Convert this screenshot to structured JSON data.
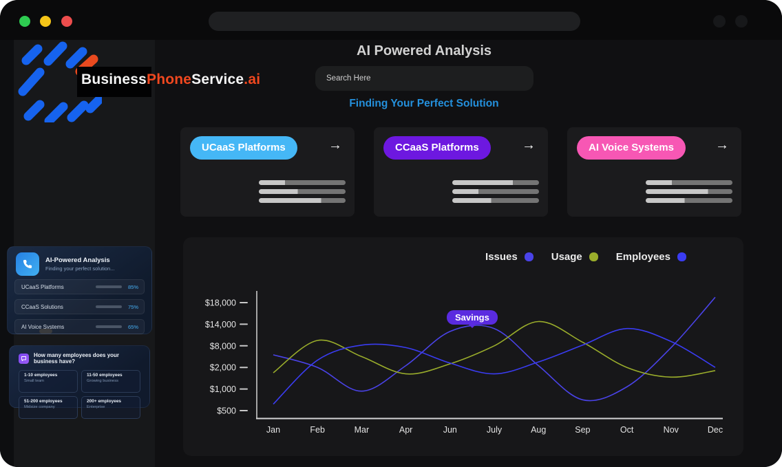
{
  "window": {
    "traffic_lights": [
      "#2ecc51",
      "#f5c518",
      "#ed4d4d"
    ],
    "url_bar_text": ""
  },
  "brand": {
    "logo_part1": "Business",
    "logo_part2": "Phone",
    "logo_part3": "Service",
    "logo_part4": ".ai",
    "colors": {
      "blue": "#1663ee",
      "orange": "#ea4a1f"
    }
  },
  "header": {
    "title": "AI Powered Analysis",
    "search_placeholder": "Search Here",
    "subtitle": "Finding Your Perfect Solution",
    "subtitle_color": "#2490dc"
  },
  "solutions": {
    "cards": [
      {
        "label": "UCaaS Platforms",
        "pill_color": "#45b7f6",
        "arrow": "→",
        "skeleton_splits": [
          30,
          45,
          72
        ]
      },
      {
        "label": "CCaaS Platforms",
        "pill_color": "#6d18e0",
        "arrow": "→",
        "skeleton_splits": [
          70,
          30,
          45
        ]
      },
      {
        "label": "AI Voice Systems",
        "pill_color": "#f757b4",
        "arrow": "→",
        "skeleton_splits": [
          30,
          72,
          45
        ]
      }
    ],
    "skeleton_colors": {
      "light": "#c7c7c7",
      "dark": "#747474"
    }
  },
  "sidebar": {
    "analysis_widget": {
      "icon": "phone-icon",
      "title": "AI-Powered Analysis",
      "subtitle": "Finding your perfect solution...",
      "accent": "#46aef2",
      "items": [
        {
          "label": "UCaaS Platforms",
          "percent": 85,
          "percent_label": "85%"
        },
        {
          "label": "CCaaS Solutions",
          "percent": 75,
          "percent_label": "75%"
        },
        {
          "label": "AI Voice Systems",
          "percent": 65,
          "percent_label": "65%"
        }
      ]
    },
    "employees_widget": {
      "icon": "chat-icon",
      "question": "How many employees does your business have?",
      "options": [
        {
          "label": "1-10 employees",
          "sub": "Small team"
        },
        {
          "label": "11-50 employees",
          "sub": "Growing business"
        },
        {
          "label": "51-200 employees",
          "sub": "Midsize company"
        },
        {
          "label": "200+ employees",
          "sub": "Enterprise"
        }
      ]
    }
  },
  "chart_data": {
    "type": "line",
    "title": "",
    "categories": [
      "Jan",
      "Feb",
      "Mar",
      "Apr",
      "Jun",
      "July",
      "Aug",
      "Sep",
      "Oct",
      "Nov",
      "Dec"
    ],
    "y_ticks": [
      "$18,000",
      "$14,000",
      "$8,000",
      "$2,000",
      "$1,000",
      "$500"
    ],
    "y_tick_values": [
      18000,
      14000,
      8000,
      2000,
      1000,
      500
    ],
    "series": [
      {
        "name": "Issues",
        "color": "#4a43e8",
        "values": [
          5500,
          2000,
          950,
          2500,
          12000,
          12800,
          2500,
          750,
          1100,
          7500,
          19000
        ]
      },
      {
        "name": "Usage",
        "color": "#9aad2b",
        "values": [
          1750,
          9500,
          5000,
          1700,
          3000,
          8000,
          14500,
          9000,
          2000,
          1550,
          1850
        ]
      },
      {
        "name": "Employees",
        "color": "#3a3cf2",
        "values": [
          650,
          4000,
          8200,
          7500,
          3200,
          1700,
          3500,
          8200,
          12800,
          9200,
          2000
        ]
      }
    ],
    "annotation": {
      "text": "Savings",
      "color": "#5a2be0",
      "month_index": 4.5
    },
    "legend_position": "top-right",
    "grid": false,
    "axis_color": "#d5d5d5"
  }
}
